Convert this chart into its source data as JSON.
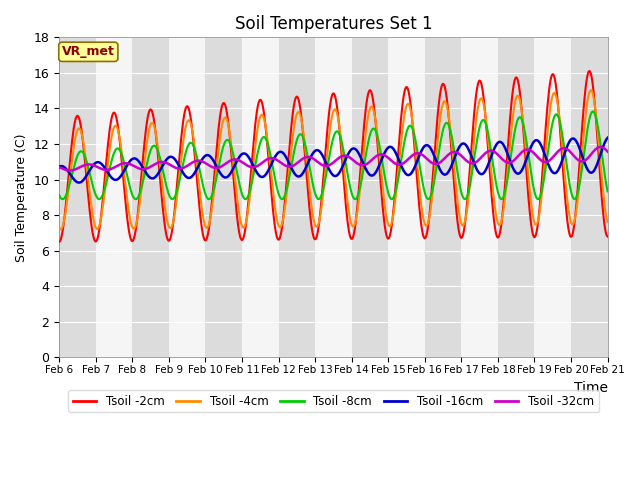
{
  "title": "Soil Temperatures Set 1",
  "xlabel": "Time",
  "ylabel": "Soil Temperature (C)",
  "ylim": [
    0,
    18
  ],
  "yticks": [
    0,
    2,
    4,
    6,
    8,
    10,
    12,
    14,
    16,
    18
  ],
  "date_labels": [
    "Feb 6",
    "Feb 7",
    "Feb 8",
    "Feb 9",
    "Feb 10",
    "Feb 11",
    "Feb 12",
    "Feb 13",
    "Feb 14",
    "Feb 15",
    "Feb 16",
    "Feb 17",
    "Feb 18",
    "Feb 19",
    "Feb 20",
    "Feb 21"
  ],
  "colors": {
    "Tsoil -2cm": "#FF0000",
    "Tsoil -4cm": "#FF8C00",
    "Tsoil -8cm": "#00CC00",
    "Tsoil -16cm": "#0000CC",
    "Tsoil -32cm": "#CC00CC"
  },
  "line_widths": {
    "Tsoil -2cm": 1.5,
    "Tsoil -4cm": 1.5,
    "Tsoil -8cm": 1.5,
    "Tsoil -16cm": 1.8,
    "Tsoil -32cm": 1.8
  },
  "annotation_text": "VR_met",
  "annotation_color": "#8B0000",
  "annotation_bg": "#FFFF99",
  "annotation_edge": "#8B7000",
  "band_colors": [
    "#DCDCDC",
    "#F5F5F5"
  ],
  "fig_bg": "#FFFFFF",
  "n_days": 15,
  "pts_per_day": 48,
  "legend_labels": [
    "Tsoil -2cm",
    "Tsoil -4cm",
    "Tsoil -8cm",
    "Tsoil -16cm",
    "Tsoil -32cm"
  ]
}
